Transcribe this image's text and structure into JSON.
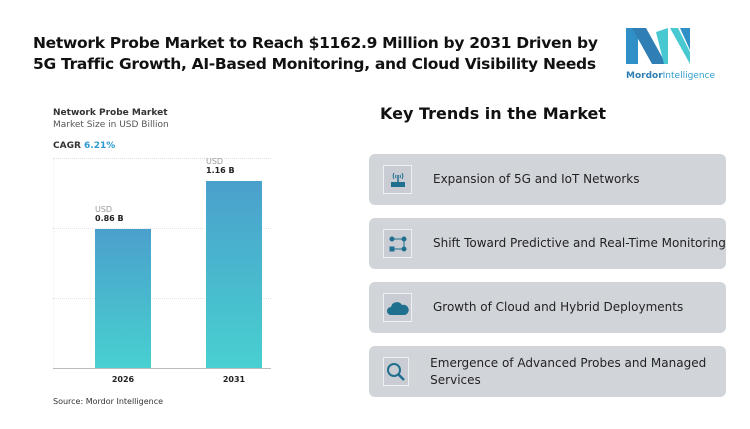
{
  "title": "Network Probe Market to Reach $1162.9 Million by 2031 Driven by 5G Traffic Growth, AI-Based Monitoring, and Cloud Visibility Needs",
  "logo": {
    "brand": "Mordor",
    "brand2": "Intelligence"
  },
  "chart_data": {
    "type": "bar",
    "title": "Network Probe Market",
    "subtitle": "Market Size in USD Billion",
    "cagr_label": "CAGR",
    "cagr_value": "6.21%",
    "categories": [
      "2026",
      "2031"
    ],
    "values": [
      0.86,
      1.16
    ],
    "value_labels": [
      {
        "unit": "USD",
        "value": "0.86 B"
      },
      {
        "unit": "USD",
        "value": "1.16 B"
      }
    ],
    "ylim": [
      0,
      1.3
    ],
    "colors": {
      "bar_top": "#4aa0cc",
      "bar_bottom": "#48d0d0",
      "cagr": "#2a9bd0"
    }
  },
  "source": "Source: Mordor Intelligence",
  "trends": {
    "heading": "Key Trends in the Market",
    "items": [
      {
        "icon": "router-icon",
        "label": "Expansion of 5G and IoT Networks"
      },
      {
        "icon": "workflow-icon",
        "label": "Shift Toward Predictive and Real-Time Monitoring"
      },
      {
        "icon": "cloud-icon",
        "label": "Growth of Cloud and Hybrid Deployments"
      },
      {
        "icon": "search-icon",
        "label": "Emergence of Advanced Probes and Managed Services"
      }
    ]
  }
}
